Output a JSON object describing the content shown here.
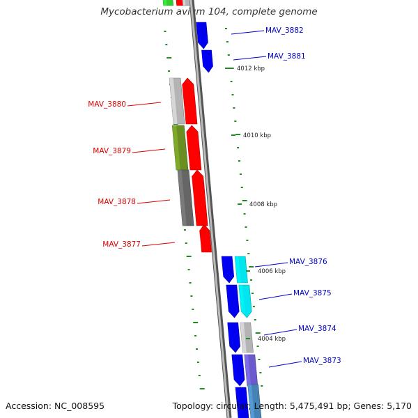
{
  "title": "Mycobacterium avium 104, complete genome",
  "footer": {
    "accession": "Accession: NC_008595",
    "summary": "Topology: circular; Length: 5,475,491 bp; Genes: 5,170"
  },
  "colors": {
    "forward_label": "#0000cc",
    "reverse_label": "#dd0000",
    "tick": "#228b22",
    "backbone": "#888888",
    "red": "#ff0000",
    "blue": "#0000ee",
    "cyan": "#00e5ee",
    "grey": "#b4b4b4",
    "dark_grey": "#666666",
    "olive": "#6b8e23",
    "green": "#33cc33",
    "slate": "#6a5acd",
    "steel": "#4682b4"
  },
  "kbp_labels": [
    "4012 kbp",
    "4010 kbp",
    "4008 kbp",
    "4006 kbp",
    "4004 kbp"
  ],
  "genes": [
    {
      "name": "MAV_3882",
      "strand": "forward"
    },
    {
      "name": "MAV_3881",
      "strand": "forward"
    },
    {
      "name": "MAV_3880",
      "strand": "reverse"
    },
    {
      "name": "MAV_3879",
      "strand": "reverse"
    },
    {
      "name": "MAV_3878",
      "strand": "reverse"
    },
    {
      "name": "MAV_3877",
      "strand": "reverse"
    },
    {
      "name": "MAV_3876",
      "strand": "forward"
    },
    {
      "name": "MAV_3875",
      "strand": "forward"
    },
    {
      "name": "MAV_3874",
      "strand": "forward"
    },
    {
      "name": "MAV_3873",
      "strand": "forward"
    }
  ]
}
